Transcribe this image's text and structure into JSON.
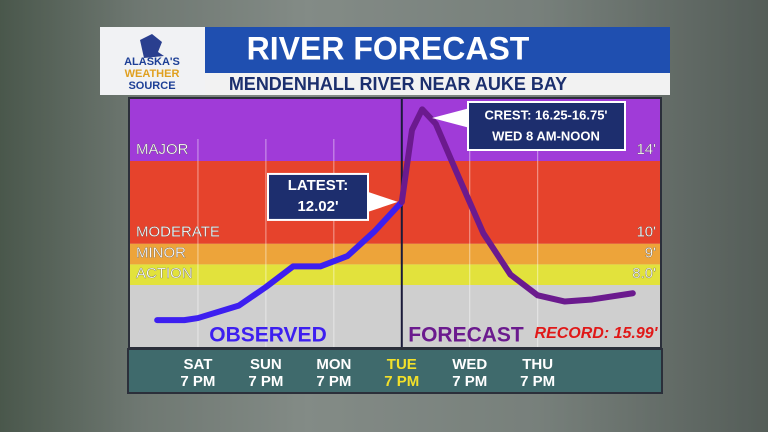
{
  "logo": {
    "text": [
      "ALASKA'S",
      "WEATHER",
      "SOURCE"
    ]
  },
  "chart_data": {
    "type": "line",
    "title": "RIVER FORECAST",
    "subtitle": "MENDENHALL RIVER NEAR AUKE BAY",
    "xlim": [
      -1,
      6.8
    ],
    "ylim": [
      5,
      17
    ],
    "xticks": [
      {
        "value": 0,
        "label": "SAT\n7 PM"
      },
      {
        "value": 1,
        "label": "SUN\n7 PM"
      },
      {
        "value": 2,
        "label": "MON\n7 PM"
      },
      {
        "value": 3,
        "label": "TUE\n7 PM"
      },
      {
        "value": 4,
        "label": "WED\n7 PM"
      },
      {
        "value": 5,
        "label": "THU\n7 PM"
      }
    ],
    "current_tick": 3,
    "yticks": [
      {
        "value": 8,
        "label": "8.0'"
      },
      {
        "value": 9,
        "label": "9'"
      },
      {
        "value": 10,
        "label": "10'"
      },
      {
        "value": 14,
        "label": "14'"
      }
    ],
    "stages": [
      {
        "name": "ACTION",
        "color": "#e2e23c"
      },
      {
        "name": "MINOR",
        "color": "#eda43a"
      },
      {
        "name": "MODERATE",
        "color": "#e6432c"
      },
      {
        "name": "MAJOR",
        "color": "#a03bd8"
      }
    ],
    "series": [
      {
        "name": "OBSERVED",
        "color": "#3d1ff0",
        "x": [
          -0.6,
          -0.2,
          0,
          0.6,
          1.0,
          1.4,
          1.8,
          2.2,
          2.6,
          3.0
        ],
        "values": [
          6.3,
          6.3,
          6.4,
          7.0,
          7.9,
          8.9,
          8.9,
          9.4,
          10.6,
          12.02
        ]
      },
      {
        "name": "FORECAST",
        "color": "#6b1a8e",
        "x": [
          3.0,
          3.15,
          3.3,
          3.5,
          3.8,
          4.2,
          4.6,
          5.0,
          5.4,
          5.8,
          6.4
        ],
        "values": [
          12.02,
          15.5,
          16.5,
          15.8,
          13.5,
          10.5,
          8.5,
          7.5,
          7.2,
          7.3,
          7.6
        ]
      }
    ],
    "annotations": {
      "latest": [
        "LATEST:",
        "12.02'"
      ],
      "crest": [
        "CREST: 16.25-16.75'",
        "WED 8 AM-NOON"
      ],
      "record": "RECORD: 15.99'"
    }
  }
}
